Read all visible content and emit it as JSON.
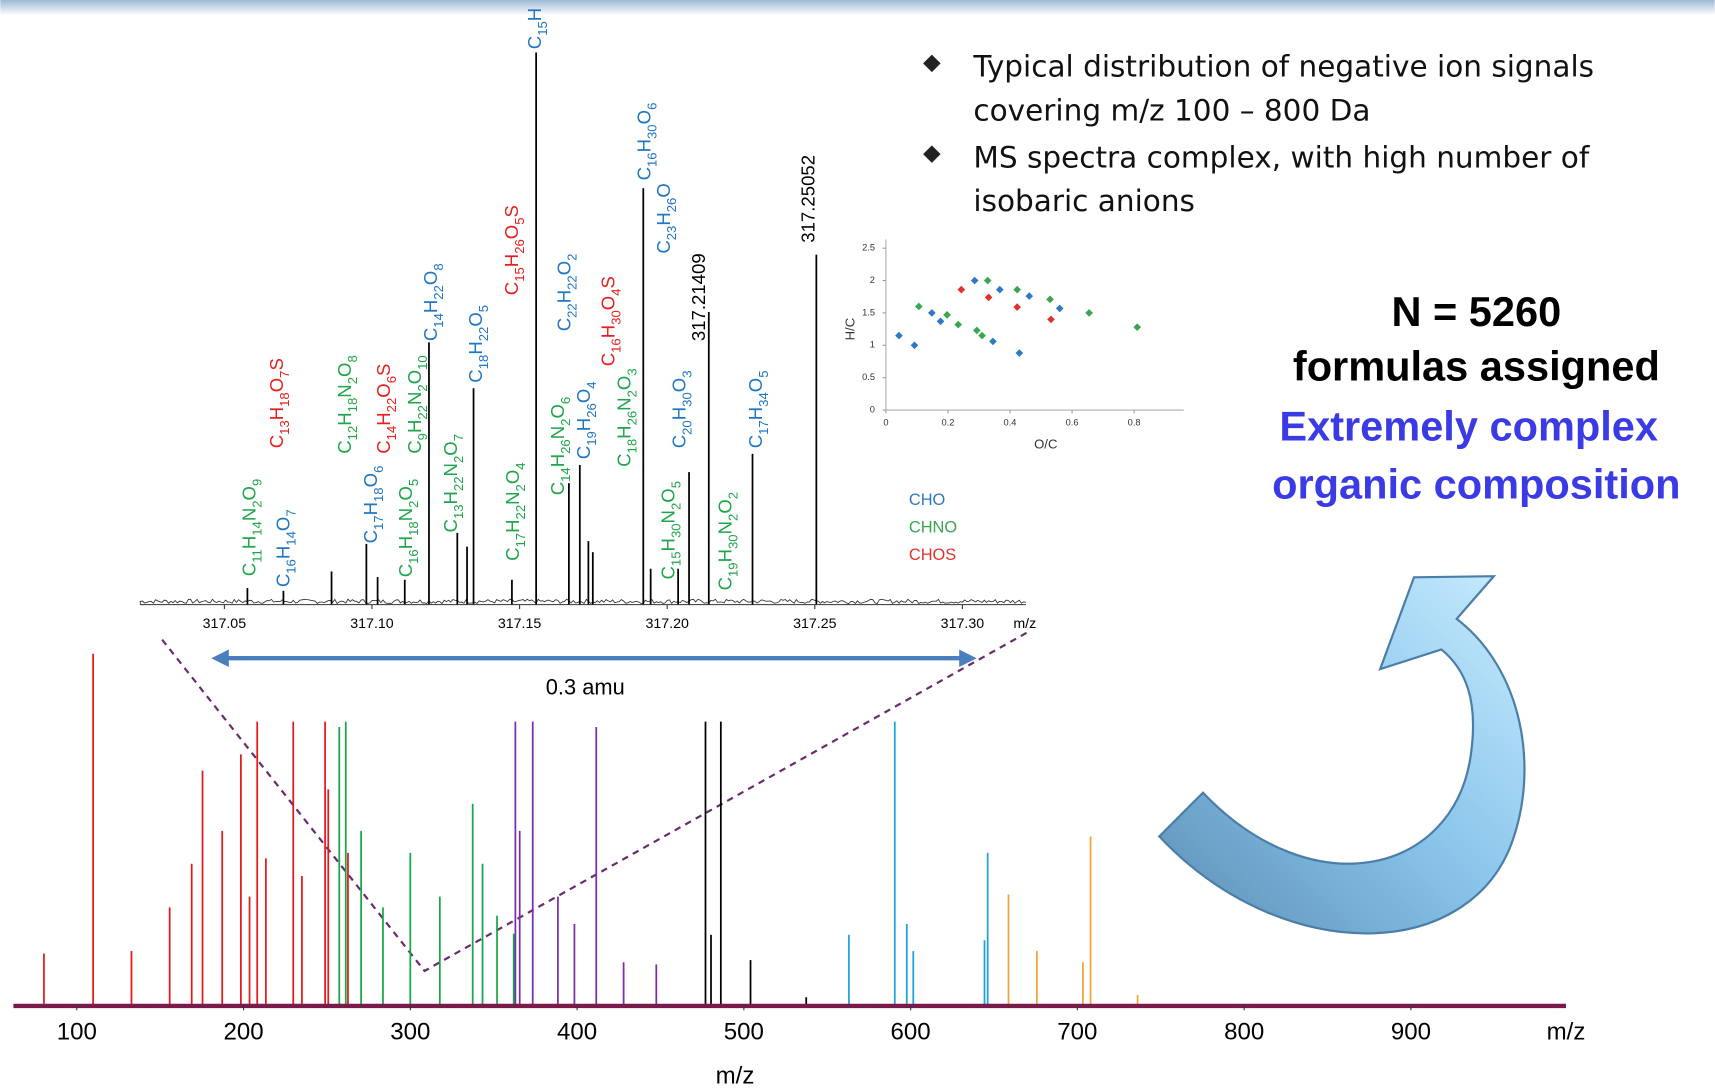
{
  "bullets": [
    [
      "Typical distribution of negative ion signals",
      "covering m/z 100 – 800 Da"
    ],
    [
      "MS spectra complex, with high number of",
      "isobaric anions"
    ]
  ],
  "summary": {
    "lines": [
      "N = 5260",
      "formulas assigned"
    ],
    "highlight": [
      "Extremely complex",
      "organic composition"
    ]
  },
  "chart_data": [
    {
      "type": "spectrum",
      "xlabel": "m/z",
      "xlabel_end": "m/z",
      "xlim": [
        62,
        993
      ],
      "ylim": [
        0,
        100
      ],
      "xticks": [
        100,
        200,
        300,
        400,
        500,
        600,
        700,
        800,
        900
      ],
      "axis_color": "#7a1a4a",
      "series": [
        {
          "color": "#e31a1c",
          "x": [
            80.3,
            109.8,
            132.8,
            155.7,
            168.9,
            175.4,
            187.2,
            198.4,
            203.6,
            208.2,
            213.4,
            229.8,
            235,
            248.9,
            250.8,
            262.6
          ],
          "values": [
            14.5,
            97.6,
            15.2,
            27.3,
            39.4,
            65.2,
            48.5,
            69.7,
            30.3,
            78.8,
            40.9,
            78.8,
            36,
            78.8,
            60,
            42.4
          ]
        },
        {
          "color": "#17a84a",
          "x": [
            257.4,
            261.3,
            270.5,
            283.6,
            300,
            317.7,
            337.4,
            343.3,
            352,
            362
          ],
          "values": [
            77.3,
            78.8,
            48.5,
            27.3,
            42.4,
            30.3,
            56,
            39.4,
            25,
            20
          ]
        },
        {
          "color": "#7b2fa6",
          "x": [
            363,
            365.6,
            373.4,
            388.5,
            398.4,
            411.5,
            427.9,
            447.5
          ],
          "values": [
            78.8,
            48.5,
            78.8,
            30.3,
            22.7,
            77.3,
            12.1,
            11.5
          ]
        },
        {
          "color": "#000000",
          "x": [
            477,
            480.3,
            486.2,
            504,
            537.4
          ],
          "values": [
            78.8,
            19.7,
            78.8,
            12.7,
            2.4
          ]
        },
        {
          "color": "#1da2dc",
          "x": [
            563,
            590.5,
            597.7,
            601.6,
            644.3,
            646.2
          ],
          "values": [
            19.7,
            78.8,
            22.7,
            15.2,
            18.2,
            42.4
          ]
        },
        {
          "color": "#f2a33a",
          "x": [
            658.7,
            675.7,
            703.3,
            707.9,
            736.1
          ],
          "values": [
            30.9,
            15.2,
            12.1,
            47,
            3
          ]
        }
      ]
    },
    {
      "type": "spectrum",
      "xlabel_end": "m/z",
      "span_label": "0.3 amu",
      "xlim": [
        317.0215,
        317.3215
      ],
      "ylim": [
        0,
        100
      ],
      "xticks": [
        317.05,
        {
          "value": 317.1,
          "label": "317.10"
        },
        317.15,
        {
          "value": 317.2,
          "label": "317.20"
        },
        317.25,
        {
          "value": 317.3,
          "label": "317.30"
        }
      ],
      "series": [
        {
          "color": "#000000",
          "x": [
            317.0578,
            317.07,
            317.0863,
            317.0981,
            317.1019,
            317.1111,
            317.1193,
            317.1289,
            317.1322,
            317.1344,
            317.1474,
            317.1556,
            317.1667,
            317.1704,
            317.1733,
            317.1748,
            317.1919,
            317.1944,
            317.2037,
            317.2074,
            317.21409,
            317.2289,
            317.25052
          ],
          "values": [
            3,
            2.5,
            6,
            11,
            5,
            4.5,
            47.5,
            13,
            10.5,
            39.2,
            4.5,
            100,
            22,
            25.3,
            11.5,
            9.5,
            75.4,
            6.5,
            6.5,
            24,
            53,
            27.3,
            63.4
          ]
        }
      ],
      "annotations": [
        {
          "text": "C11H14N2O9",
          "color": "#1fa64a"
        },
        {
          "text": "C16H14O7",
          "color": "#1f77c4"
        },
        {
          "text": "C13H18O7S",
          "color": "#e8201c"
        },
        {
          "text": "C12H18N2O8",
          "color": "#1fa64a"
        },
        {
          "text": "C17H18O6",
          "color": "#1f77c4"
        },
        {
          "text": "C14H22O6S",
          "color": "#e8201c"
        },
        {
          "text": "C16H18N2O5",
          "color": "#1fa64a"
        },
        {
          "text": "C9H22N2O10",
          "color": "#1fa64a"
        },
        {
          "text": "C14H22O8",
          "color": "#1f77c4"
        },
        {
          "text": "C13H22N2O7",
          "color": "#1fa64a"
        },
        {
          "text": "C18H22O5",
          "color": "#1f77c4"
        },
        {
          "text": "C17H22N2O4",
          "color": "#1fa64a"
        },
        {
          "text": "C15H26O5S",
          "color": "#e8201c"
        },
        {
          "text": "C15H",
          "color": "#1f77c4"
        },
        {
          "text": "C22H22O2",
          "color": "#1f77c4"
        },
        {
          "text": "C14H26N2O6",
          "color": "#1fa64a"
        },
        {
          "text": "C19H26O4",
          "color": "#1f77c4"
        },
        {
          "text": "C16H30O4S",
          "color": "#e8201c"
        },
        {
          "text": "C18H26N2O3",
          "color": "#1fa64a"
        },
        {
          "text": "C16H30O6",
          "color": "#1f77c4"
        },
        {
          "text": "C23H26O",
          "color": "#1f77c4"
        },
        {
          "text": "C15H30N2O5",
          "color": "#1fa64a"
        },
        {
          "text": "C20H30O3",
          "color": "#1f77c4"
        },
        {
          "text": "C19H30N2O2",
          "color": "#1fa64a"
        },
        {
          "text": "C17H34O5",
          "color": "#1f77c4"
        }
      ]
    },
    {
      "type": "scatter",
      "xlabel": "O/C",
      "ylabel": "H/C",
      "xlim": [
        0,
        0.96
      ],
      "ylim": [
        0,
        2.5
      ],
      "xticks": [
        0,
        0.2,
        0.4,
        0.6,
        0.8
      ],
      "yticks": [
        0,
        0.5,
        1,
        1.5,
        2,
        2.5
      ],
      "legend": "below",
      "series": [
        {
          "name": "CHO",
          "color": "#2f78c4",
          "x": [
            0.042,
            0.092,
            0.148,
            0.286,
            0.367,
            0.462,
            0.56,
            0.176,
            0.345,
            0.43
          ],
          "values": [
            1.15,
            1.0,
            1.5,
            2.0,
            1.86,
            1.76,
            1.57,
            1.37,
            1.06,
            0.88
          ]
        },
        {
          "name": "CHNO",
          "color": "#3aa64e",
          "x": [
            0.106,
            0.197,
            0.233,
            0.293,
            0.328,
            0.31,
            0.423,
            0.529,
            0.655,
            0.81
          ],
          "values": [
            1.6,
            1.47,
            1.32,
            1.23,
            2.0,
            1.15,
            1.86,
            1.71,
            1.5,
            1.28
          ]
        },
        {
          "name": "CHOS",
          "color": "#e0322c",
          "x": [
            0.243,
            0.331,
            0.423,
            0.532
          ],
          "values": [
            1.86,
            1.74,
            1.59,
            1.4
          ]
        }
      ]
    }
  ]
}
